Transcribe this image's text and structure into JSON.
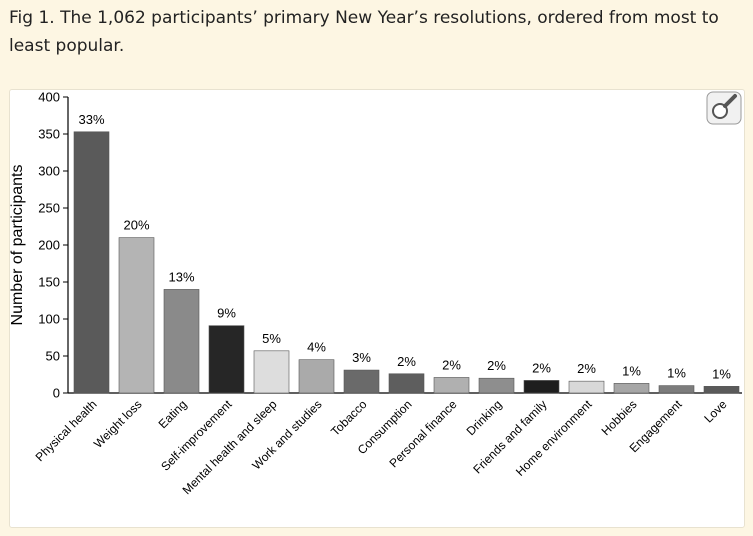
{
  "caption": "Fig 1. The 1,062 participants’ primary New Year’s resolutions, ordered from most to least popular.",
  "zoom_icon": "magnifier-icon",
  "chart_data": {
    "type": "bar",
    "title": "",
    "xlabel": "",
    "ylabel": "Number of participants",
    "ylim": [
      0,
      400
    ],
    "yticks": [
      0,
      50,
      100,
      150,
      200,
      250,
      300,
      350,
      400
    ],
    "grid": false,
    "categories": [
      "Physical health",
      "Weight loss",
      "Eating",
      "Self-improvement",
      "Mental health and sleep",
      "Work and studies",
      "Tobacco",
      "Consumption",
      "Personal finance",
      "Drinking",
      "Friends and family",
      "Home environment",
      "Hobbies",
      "Engagement",
      "Love"
    ],
    "values": [
      353,
      210,
      140,
      91,
      57,
      45,
      31,
      26,
      21,
      20,
      17,
      16,
      13,
      10,
      9
    ],
    "labels": [
      "33%",
      "20%",
      "13%",
      "9%",
      "5%",
      "4%",
      "3%",
      "2%",
      "2%",
      "2%",
      "2%",
      "2%",
      "1%",
      "1%",
      "1%"
    ],
    "colors": [
      "#5a5a5a",
      "#b4b4b4",
      "#8a8a8a",
      "#262626",
      "#dddddd",
      "#aaaaaa",
      "#6a6a6a",
      "#5e5e5e",
      "#b0b0b0",
      "#8e8e8e",
      "#1e1e1e",
      "#d8d8d8",
      "#a6a6a6",
      "#7c7c7c",
      "#5a5a5a"
    ]
  }
}
